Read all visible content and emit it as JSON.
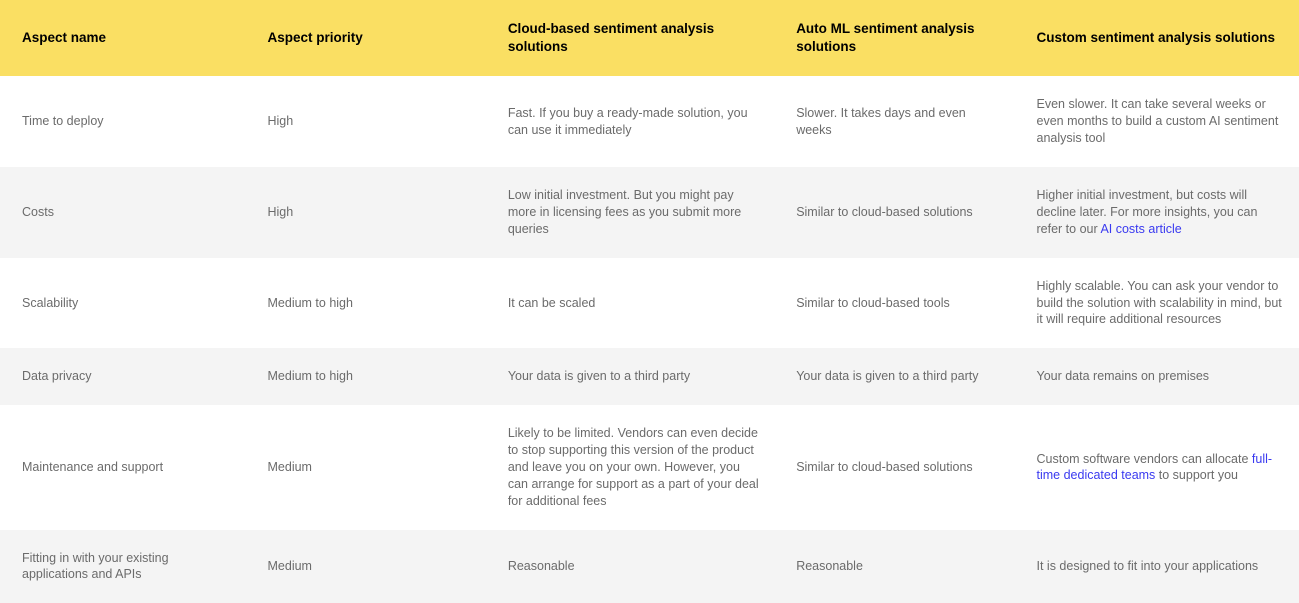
{
  "table": {
    "header_bg": "#fadf63",
    "header_text_color": "#000000",
    "body_text_color": "#6b6b6b",
    "alt_row_bg": "#f4f4f4",
    "link_color": "#3a3af0",
    "columns": [
      {
        "label": "Aspect name",
        "width_pct": 18.9
      },
      {
        "label": "Aspect priority",
        "width_pct": 18.5
      },
      {
        "label": "Cloud-based sentiment analysis solutions",
        "width_pct": 22.2
      },
      {
        "label": "Auto ML sentiment analysis solutions",
        "width_pct": 18.5
      },
      {
        "label": "Custom sentiment analysis solutions",
        "width_pct": 21.9
      }
    ],
    "rows": [
      {
        "alt": false,
        "cells": [
          "Time to deploy",
          "High",
          "Fast. If you buy a ready-made solution, you can use it immediately",
          "Slower. It takes days and even weeks",
          "Even slower. It can take several weeks or even months to build a custom AI sentiment analysis tool"
        ]
      },
      {
        "alt": true,
        "cells": [
          "Costs",
          "High",
          "Low initial investment. But you might pay more in licensing fees as you submit more queries",
          "Similar to cloud-based solutions",
          {
            "pre": "Higher initial investment, but costs will decline later. For more insights, you can refer to our ",
            "link": "AI costs article",
            "post": ""
          }
        ]
      },
      {
        "alt": false,
        "cells": [
          "Scalability",
          "Medium to high",
          "It can be scaled",
          "Similar to cloud-based tools",
          "Highly scalable. You can ask your vendor to build the solution with scalability in mind, but it will require additional resources"
        ]
      },
      {
        "alt": true,
        "cells": [
          "Data privacy",
          "Medium to high",
          "Your data is given to a third party",
          "Your data is given to a third party",
          "Your data remains on premises"
        ]
      },
      {
        "alt": false,
        "cells": [
          "Maintenance and support",
          "Medium",
          "Likely to be limited. Vendors can even decide to stop supporting this version of the product and leave you on your own. However, you can arrange for support as a part of your deal for additional fees",
          "Similar to cloud-based solutions",
          {
            "pre": "Custom software vendors can allocate ",
            "link": "full-time dedicated teams",
            "post": " to support you"
          }
        ]
      },
      {
        "alt": true,
        "cells": [
          "Fitting in with your existing applications and APIs",
          "Medium",
          "Reasonable",
          "Reasonable",
          "It is designed to fit into your applications"
        ]
      }
    ]
  }
}
